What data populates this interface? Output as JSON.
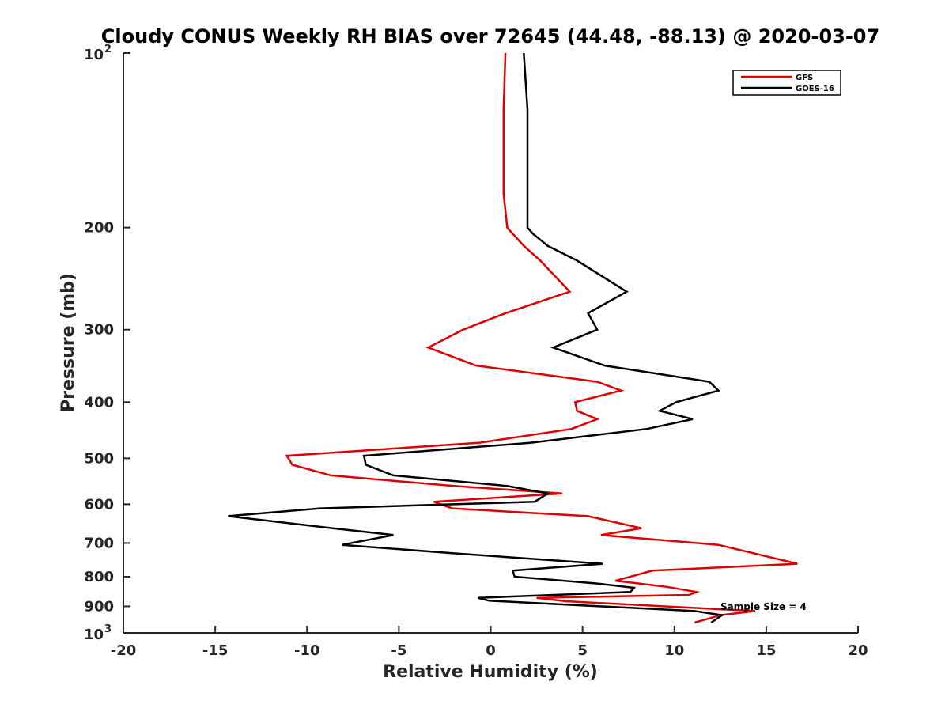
{
  "chart_data": {
    "type": "line",
    "title": "Cloudy CONUS Weekly RH BIAS over 72645 (44.48, -88.13) @ 2020-03-07",
    "xlabel": "Relative Humidity (%)",
    "ylabel": "Pressure (mb)",
    "xlim": [
      -20,
      20
    ],
    "ylim": [
      100,
      1000
    ],
    "y_scale": "log",
    "y_reversed": true,
    "xticks": [
      "-20",
      "-15",
      "-10",
      "-5",
      "0",
      "5",
      "10",
      "15",
      "20"
    ],
    "yticks": [
      {
        "value": 100,
        "base": "10",
        "exp": "2"
      },
      {
        "value": 200,
        "label": "200"
      },
      {
        "value": 300,
        "label": "300"
      },
      {
        "value": 400,
        "label": "400"
      },
      {
        "value": 500,
        "label": "500"
      },
      {
        "value": 600,
        "label": "600"
      },
      {
        "value": 700,
        "label": "700"
      },
      {
        "value": 800,
        "label": "800"
      },
      {
        "value": 900,
        "label": "900"
      },
      {
        "value": 1000,
        "base": "10",
        "exp": "3"
      }
    ],
    "grid": false,
    "legend_position": "top-right",
    "annotation": "Sample Size = 4",
    "series": [
      {
        "name": "GFS",
        "color": "#e00000",
        "x": [
          0.8,
          0.7,
          0.7,
          0.7,
          0.9,
          1.2,
          1.8,
          2.7,
          4.3,
          0.8,
          -1.5,
          -3.4,
          -0.8,
          5.8,
          7.1,
          4.6,
          4.7,
          5.8,
          4.4,
          -0.6,
          -11.1,
          -10.8,
          -8.7,
          -2.0,
          3.9,
          -3.1,
          -2.1,
          5.3,
          8.2,
          6.0,
          12.4,
          16.7,
          8.8,
          6.8,
          9.6,
          11.2,
          10.8,
          2.5,
          4.1,
          14.4,
          12.5,
          11.1
        ],
        "y": [
          100,
          125,
          150,
          175,
          200,
          205,
          215,
          228,
          258,
          281,
          300,
          322,
          346,
          369,
          382,
          400,
          414,
          428,
          445,
          470,
          495,
          513,
          535,
          558,
          575,
          594,
          610,
          629,
          660,
          678,
          705,
          760,
          781,
          813,
          833,
          850,
          860,
          870,
          882,
          917,
          932,
          960
        ]
      },
      {
        "name": "GOES-16",
        "color": "#000000",
        "x": [
          1.8,
          2.0,
          2.0,
          2.0,
          2.0,
          2.3,
          3.1,
          4.7,
          7.4,
          5.3,
          5.8,
          3.4,
          6.2,
          11.9,
          12.4,
          10.1,
          9.2,
          11.0,
          8.5,
          2.2,
          -6.9,
          -6.8,
          -5.3,
          0.9,
          3.1,
          2.4,
          -9.3,
          -14.3,
          -8.6,
          -5.3,
          -8.1,
          -1.8,
          6.1,
          1.2,
          1.3,
          5.8,
          7.8,
          7.6,
          -0.7,
          -0.1,
          11.1,
          12.6,
          12.0
        ],
        "y": [
          100,
          125,
          150,
          175,
          200,
          205,
          215,
          228,
          258,
          281,
          300,
          322,
          346,
          369,
          382,
          400,
          414,
          428,
          445,
          470,
          495,
          513,
          535,
          558,
          575,
          594,
          610,
          629,
          660,
          678,
          705,
          730,
          760,
          781,
          800,
          822,
          836,
          850,
          870,
          880,
          917,
          932,
          960
        ]
      }
    ]
  }
}
